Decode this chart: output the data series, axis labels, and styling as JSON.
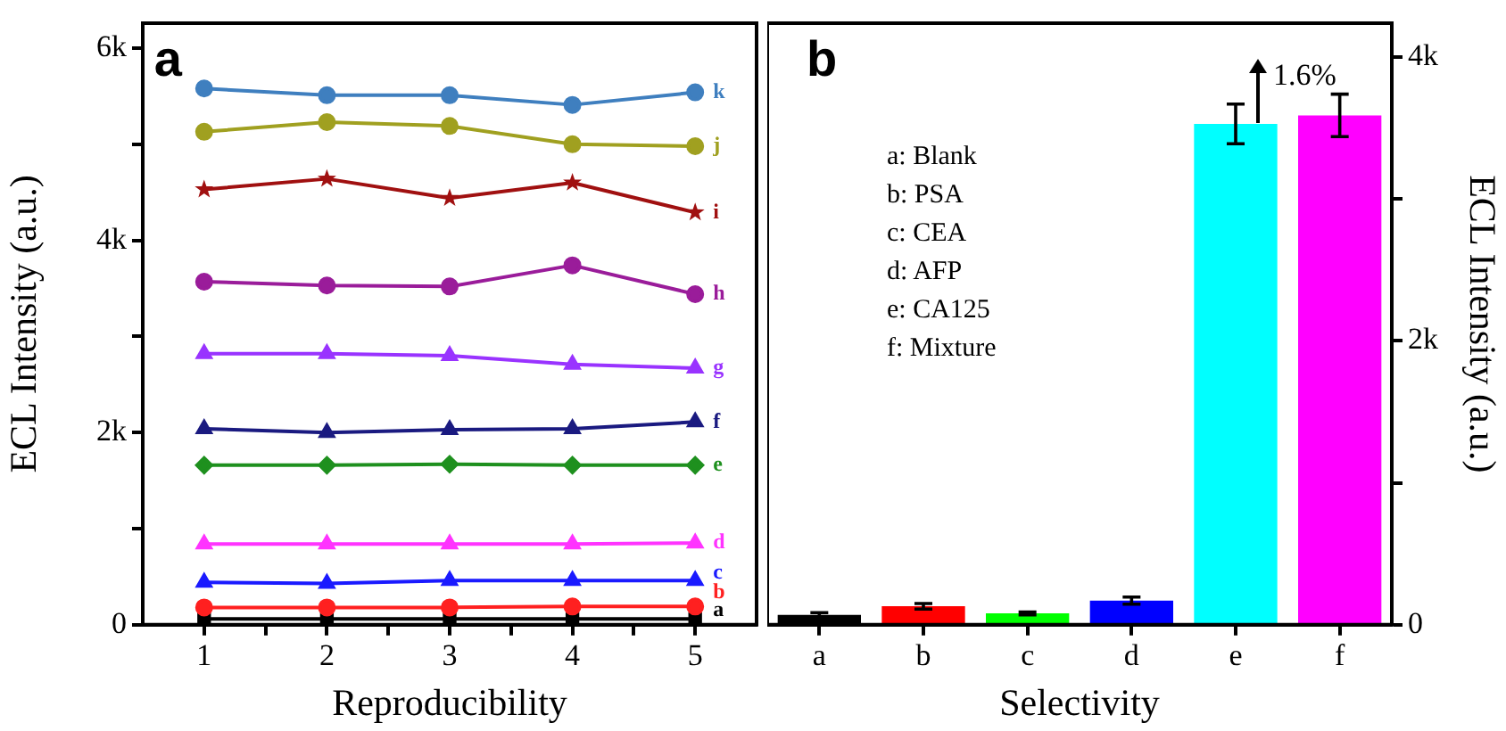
{
  "chart_data": [
    {
      "type": "line",
      "title": "a",
      "xlabel": "Reproducibility",
      "ylabel": "ECL Intensity (a.u.)",
      "x": [
        1,
        2,
        3,
        4,
        5
      ],
      "xlim": [
        0.5,
        5.5
      ],
      "xticks": [
        1,
        {
          "value": 1.5,
          "label": null
        },
        2,
        {
          "value": 2.5,
          "label": null
        },
        3,
        {
          "value": 3.5,
          "label": null
        },
        4,
        {
          "value": 4.5,
          "label": null
        },
        5
      ],
      "ylim": [
        0,
        6260
      ],
      "yticks": [
        0,
        {
          "value": 1000,
          "label": null
        },
        {
          "value": 2000,
          "label": "2k"
        },
        {
          "value": 3000,
          "label": null
        },
        {
          "value": 4000,
          "label": "4k"
        },
        {
          "value": 5000,
          "label": null
        },
        {
          "value": 6000,
          "label": "6k"
        }
      ],
      "series": [
        {
          "name": "k",
          "color": "#3f7fbf",
          "marker": "circle",
          "values": [
            5580,
            5510,
            5510,
            5410,
            5540
          ]
        },
        {
          "name": "j",
          "color": "#a0a020",
          "marker": "circle",
          "values": [
            5130,
            5230,
            5190,
            5000,
            4980
          ]
        },
        {
          "name": "i",
          "color": "#a01010",
          "marker": "star",
          "values": [
            4530,
            4640,
            4440,
            4600,
            4290
          ]
        },
        {
          "name": "h",
          "color": "#9a1c9a",
          "marker": "circle",
          "values": [
            3570,
            3530,
            3520,
            3740,
            3440
          ]
        },
        {
          "name": "g",
          "color": "#9933ff",
          "marker": "triangle",
          "values": [
            2820,
            2820,
            2800,
            2710,
            2670
          ]
        },
        {
          "name": "f",
          "color": "#1a1a80",
          "marker": "triangle",
          "values": [
            2040,
            2000,
            2030,
            2040,
            2110
          ]
        },
        {
          "name": "e",
          "color": "#1e901e",
          "marker": "diamond",
          "values": [
            1660,
            1660,
            1670,
            1660,
            1660
          ]
        },
        {
          "name": "d",
          "color": "#ff33ff",
          "marker": "triangle",
          "values": [
            840,
            840,
            840,
            840,
            850
          ]
        },
        {
          "name": "c",
          "color": "#1a1aff",
          "marker": "triangle",
          "values": [
            440,
            430,
            460,
            460,
            460
          ]
        },
        {
          "name": "b",
          "color": "#ff2020",
          "marker": "circle",
          "values": [
            180,
            180,
            180,
            190,
            190
          ]
        },
        {
          "name": "a",
          "color": "#000000",
          "marker": "square",
          "values": [
            60,
            60,
            60,
            60,
            60
          ]
        }
      ]
    },
    {
      "type": "bar",
      "title": "b",
      "xlabel": "Selectivity",
      "ylabel": "ECL Intensity (a.u.)",
      "categories": [
        "a",
        "b",
        "c",
        "d",
        "e",
        "f"
      ],
      "values": [
        70,
        130,
        80,
        170,
        3530,
        3590
      ],
      "errors": [
        15,
        20,
        10,
        25,
        140,
        150
      ],
      "colors": [
        "#000000",
        "#ff0000",
        "#00ff00",
        "#0000ff",
        "#00ffff",
        "#ff00ff"
      ],
      "ylim": [
        0,
        4240
      ],
      "yticks": [
        0,
        {
          "value": 1000,
          "label": null
        },
        {
          "value": 2000,
          "label": "2k"
        },
        {
          "value": 3000,
          "label": null
        },
        {
          "value": 4000,
          "label": "4k"
        }
      ],
      "annotations": [
        "1.6%",
        "a: Blank",
        "b: PSA",
        "c: CEA",
        "d: AFP",
        "e: CA125",
        "f: Mixture"
      ]
    }
  ]
}
